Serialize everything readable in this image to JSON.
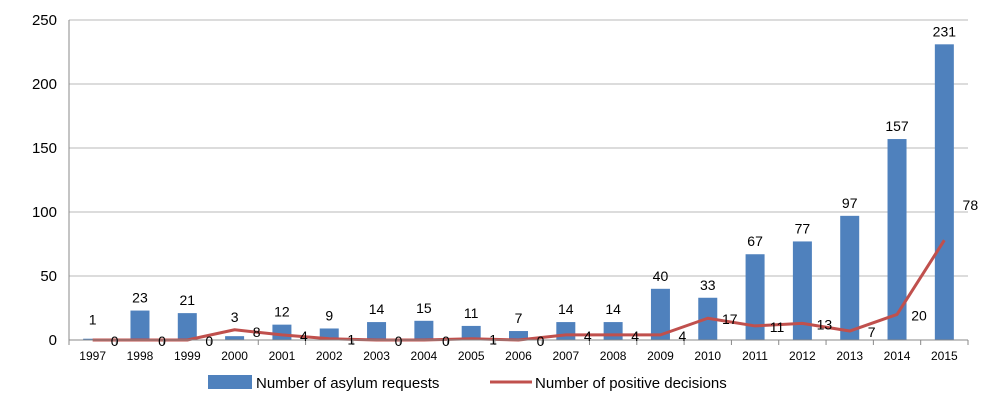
{
  "chart_data": {
    "type": "bar+line",
    "categories": [
      "1997",
      "1998",
      "1999",
      "2000",
      "2001",
      "2002",
      "2003",
      "2004",
      "2005",
      "2006",
      "2007",
      "2008",
      "2009",
      "2010",
      "2011",
      "2012",
      "2013",
      "2014",
      "2015"
    ],
    "series": [
      {
        "name": "Number of asylum requests",
        "kind": "bar",
        "color": "#4f81bd",
        "values": [
          1,
          23,
          21,
          3,
          12,
          9,
          14,
          15,
          11,
          7,
          14,
          14,
          40,
          33,
          67,
          77,
          97,
          157,
          231
        ]
      },
      {
        "name": "Number of positive decisions",
        "kind": "line",
        "color": "#c0504d",
        "values": [
          0,
          0,
          0,
          8,
          4,
          1,
          0,
          0,
          1,
          0,
          4,
          4,
          4,
          17,
          11,
          13,
          7,
          20,
          78
        ]
      }
    ],
    "ylim": [
      0,
      250
    ],
    "yticks": [
      0,
      50,
      100,
      150,
      200,
      250
    ],
    "grid": true,
    "legend": "bottom",
    "title": "",
    "xlabel": "",
    "ylabel": ""
  }
}
